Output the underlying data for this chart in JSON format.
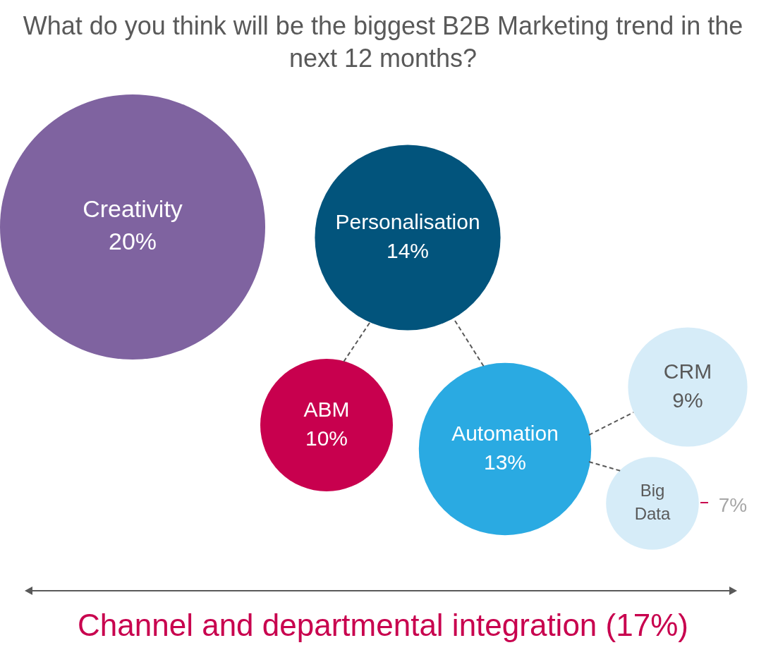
{
  "chart_data": {
    "type": "other",
    "title": "What do you think will be the biggest B2B Marketing trend in the next 12 months?",
    "categories": [
      "Creativity",
      "Personalisation",
      "ABM",
      "Automation",
      "CRM",
      "Big Data"
    ],
    "values": [
      20,
      14,
      10,
      13,
      9,
      7
    ],
    "colors": [
      "#7f63a0",
      "#02547c",
      "#c8004e",
      "#2aaae2",
      "#d6ecf8",
      "#d6ecf8"
    ],
    "value_labels": [
      "20%",
      "14%",
      "10%",
      "13%",
      "9%",
      "7%"
    ],
    "annotations": [
      "Channel and departmental integration (17%)"
    ]
  }
}
